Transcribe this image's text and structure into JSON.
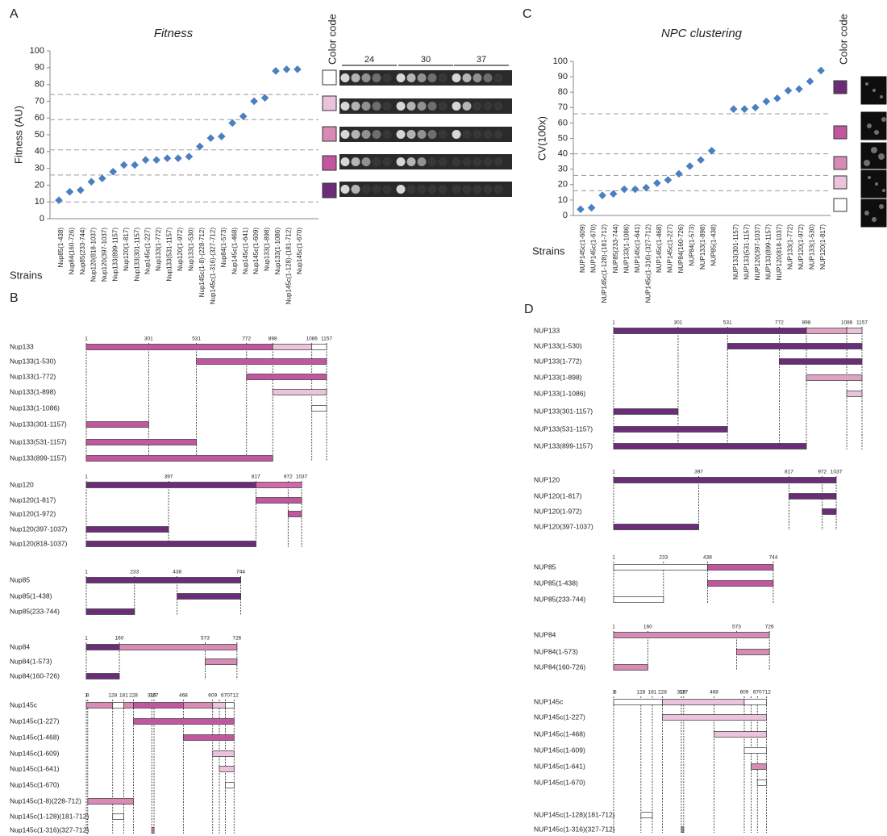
{
  "chart_data": [
    {
      "type": "scatter",
      "panel_label": "A",
      "title": "Fitness",
      "y_label": "Fitness (AU)",
      "x_label": "Strains",
      "categories": [
        "Nup85(1-438)",
        "Nup84(160-726)",
        "Nup85(233-744)",
        "Nup120(818-1037)",
        "Nup120(397-1037)",
        "Nup133(899-1157)",
        "Nup120(1-817)",
        "Nup133(301-1157)",
        "Nup145c(1-227)",
        "Nup133(1-772)",
        "Nup133(531-1157)",
        "Nup120(1-972)",
        "Nup133(1-530)",
        "Nup145c(1-8)-(228-712)",
        "Nup145c(1-316)-(327-712)",
        "Nup84(1-573)",
        "Nup145c(1-468)",
        "Nup145c(1-641)",
        "Nup145c(1-609)",
        "Nup133(1-898)",
        "Nup133(1-1086)",
        "Nup145c(1-128)-(181-712)",
        "Nup145c(1-670)"
      ],
      "values": [
        11,
        16,
        17,
        22,
        24,
        28,
        32,
        32,
        35,
        35,
        36,
        36,
        37,
        43,
        48,
        49,
        57,
        61,
        70,
        72,
        88,
        89,
        89
      ],
      "color": "#4a7fc1",
      "ylim": [
        0,
        100
      ],
      "yticks": [
        0,
        10,
        20,
        30,
        40,
        50,
        60,
        70,
        80,
        90,
        100
      ],
      "reference_lines": [
        74,
        59,
        41,
        26,
        10
      ],
      "color_code": {
        "title": "Color code",
        "colors": [
          "#ffffff",
          "#ebc3dc",
          "#d88bb5",
          "#c2569f",
          "#6b2d78"
        ]
      },
      "plate_headers": [
        "24",
        "30",
        "37"
      ]
    },
    {
      "type": "scatter",
      "panel_label": "C",
      "title": "NPC clustering",
      "y_label": "CV(100x)",
      "x_label": "Strains",
      "categories": [
        "NUP145c(1-609)",
        "NUP145c(1-670)",
        "NUP145c(1-128)-(181-712)",
        "NUP85(233-744)",
        "NUP133(1-1086)",
        "NUP145c(1-641)",
        "NUP145c(1-316)-(327-712)",
        "NUP145c(1-468)",
        "NUP145c(1-227)",
        "NUP84(160-726)",
        "NUP84(1-573)",
        "NUP133(1-898)",
        "NUP85(1-438)",
        null,
        "NUP133(301-1157)",
        "NUP133(531-1157)",
        "NUP120(397-1037)",
        "NUP133(899-1157)",
        "NUP120(818-1037)",
        "NUP133(1-772)",
        "NUP120(1-972)",
        "NUP133(1-530)",
        "NUP120(1-817)"
      ],
      "values": [
        4,
        5,
        13,
        14,
        17,
        17,
        18,
        21,
        23,
        27,
        32,
        36,
        42,
        null,
        69,
        69,
        70,
        74,
        76,
        81,
        82,
        87,
        94
      ],
      "color": "#4a7fc1",
      "ylim": [
        0,
        100
      ],
      "yticks": [
        0,
        10,
        20,
        30,
        40,
        50,
        60,
        70,
        80,
        90,
        100
      ],
      "reference_lines": [
        66,
        40,
        26,
        16
      ],
      "color_code": {
        "title": "Color code",
        "colors": [
          "#6b2d78",
          "#c2569f",
          "#d88bb5",
          "#ebc3dc",
          "#ffffff"
        ]
      }
    }
  ],
  "diagrams": [
    {
      "panel_label": "B",
      "groups": [
        {
          "ticks": [
            1,
            301,
            531,
            772,
            898,
            1086,
            1157
          ],
          "rows": [
            {
              "label": "Nup133",
              "bars": [
                [
                  1,
                  898,
                  "#c2569f"
                ],
                [
                  898,
                  1086,
                  "#ebc3dc"
                ],
                [
                  1086,
                  1157,
                  "#ffffff"
                ]
              ]
            },
            {
              "label": "Nup133(1-530)",
              "bars": [
                [
                  531,
                  1157,
                  "#c2569f"
                ]
              ]
            },
            {
              "label": "Nup133(1-772)",
              "bars": [
                [
                  772,
                  1157,
                  "#c2569f"
                ]
              ]
            },
            {
              "label": "Nup133(1-898)",
              "bars": [
                [
                  898,
                  1157,
                  "#ebc3dc"
                ]
              ]
            },
            {
              "label": "Nup133(1-1086)",
              "bars": [
                [
                  1086,
                  1157,
                  "#ffffff"
                ]
              ]
            },
            {
              "label": "Nup133(301-1157)",
              "bars": [
                [
                  1,
                  301,
                  "#c2569f"
                ]
              ]
            },
            {
              "label": "Nup133(531-1157)",
              "bars": [
                [
                  1,
                  531,
                  "#c2569f"
                ]
              ]
            },
            {
              "label": "Nup133(899-1157)",
              "bars": [
                [
                  1,
                  898,
                  "#c2569f"
                ]
              ]
            }
          ]
        },
        {
          "ticks": [
            1,
            397,
            817,
            972,
            1037
          ],
          "rows": [
            {
              "label": "Nup120",
              "bars": [
                [
                  1,
                  817,
                  "#6b2d78"
                ],
                [
                  817,
                  1037,
                  "#d06aab"
                ]
              ]
            },
            {
              "label": "Nup120(1-817)",
              "bars": [
                [
                  817,
                  1037,
                  "#c2569f"
                ]
              ]
            },
            {
              "label": "Nup120(1-972)",
              "bars": [
                [
                  972,
                  1037,
                  "#c2569f"
                ]
              ]
            },
            {
              "label": "Nup120(397-1037)",
              "bars": [
                [
                  1,
                  397,
                  "#6b2d78"
                ]
              ]
            },
            {
              "label": "Nup120(818-1037)",
              "bars": [
                [
                  1,
                  817,
                  "#6b2d78"
                ]
              ]
            }
          ]
        },
        {
          "ticks": [
            1,
            233,
            438,
            744
          ],
          "rows": [
            {
              "label": "Nup85",
              "bars": [
                [
                  1,
                  744,
                  "#6b2d78"
                ]
              ]
            },
            {
              "label": "Nup85(1-438)",
              "bars": [
                [
                  438,
                  744,
                  "#6b2d78"
                ]
              ]
            },
            {
              "label": "Nup85(233-744)",
              "bars": [
                [
                  1,
                  233,
                  "#6b2d78"
                ]
              ]
            }
          ]
        },
        {
          "ticks": [
            1,
            160,
            573,
            726
          ],
          "rows": [
            {
              "label": "Nup84",
              "bars": [
                [
                  1,
                  160,
                  "#6b2d78"
                ],
                [
                  160,
                  726,
                  "#d88bb5"
                ]
              ]
            },
            {
              "label": "Nup84(1-573)",
              "bars": [
                [
                  573,
                  726,
                  "#d88bb5"
                ]
              ]
            },
            {
              "label": "Nup84(160-726)",
              "bars": [
                [
                  1,
                  160,
                  "#6b2d78"
                ]
              ]
            }
          ]
        },
        {
          "ticks": [
            1,
            8,
            128,
            181,
            228,
            316,
            327,
            468,
            609,
            670,
            712
          ],
          "rows": [
            {
              "label": "Nup145c",
              "bars": [
                [
                  1,
                  128,
                  "#d88bb5"
                ],
                [
                  128,
                  181,
                  "#ffffff"
                ],
                [
                  181,
                  228,
                  "#d88bb5"
                ],
                [
                  228,
                  468,
                  "#c2569f"
                ],
                [
                  468,
                  609,
                  "#d88bb5"
                ],
                [
                  609,
                  670,
                  "#ebc3dc"
                ],
                [
                  670,
                  712,
                  "#ffffff"
                ]
              ]
            },
            {
              "label": "Nup145c(1-227)",
              "bars": [
                [
                  228,
                  712,
                  "#c2569f"
                ]
              ]
            },
            {
              "label": "Nup145c(1-468)",
              "bars": [
                [
                  468,
                  712,
                  "#c2569f"
                ]
              ]
            },
            {
              "label": "Nup145c(1-609)",
              "bars": [
                [
                  609,
                  712,
                  "#ebc3dc"
                ]
              ]
            },
            {
              "label": "Nup145c(1-641)",
              "bars": [
                [
                  641,
                  712,
                  "#ebc3dc"
                ]
              ]
            },
            {
              "label": "Nup145c(1-670)",
              "bars": [
                [
                  670,
                  712,
                  "#ffffff"
                ]
              ]
            },
            {
              "label": "Nup145c(1-8)(228-712)",
              "bars": [
                [
                  8,
                  228,
                  "#d88bb5"
                ]
              ]
            },
            {
              "label": "Nup145c(1-128)(181-712)",
              "bars": [
                [
                  128,
                  181,
                  "#ffffff"
                ]
              ]
            },
            {
              "label": "Nup145c(1-316)(327-712)",
              "bars": [
                [
                  316,
                  327,
                  "#d88bb5"
                ]
              ]
            }
          ]
        }
      ]
    },
    {
      "panel_label": "D",
      "groups": [
        {
          "ticks": [
            1,
            301,
            531,
            772,
            898,
            1086,
            1157
          ],
          "rows": [
            {
              "label": "NUP133",
              "bars": [
                [
                  1,
                  898,
                  "#6b2d78"
                ],
                [
                  898,
                  1086,
                  "#e0a3c6"
                ],
                [
                  1086,
                  1157,
                  "#ebc3dc"
                ]
              ]
            },
            {
              "label": "NUP133(1-530)",
              "bars": [
                [
                  531,
                  1157,
                  "#6b2d78"
                ]
              ]
            },
            {
              "label": "NUP133(1-772)",
              "bars": [
                [
                  772,
                  1157,
                  "#6b2d78"
                ]
              ]
            },
            {
              "label": "NUP133(1-898)",
              "bars": [
                [
                  898,
                  1157,
                  "#e0a3c6"
                ]
              ]
            },
            {
              "label": "NUP133(1-1086)",
              "bars": [
                [
                  1086,
                  1157,
                  "#ebc3dc"
                ]
              ]
            },
            {
              "label": "NUP133(301-1157)",
              "bars": [
                [
                  1,
                  301,
                  "#6b2d78"
                ]
              ]
            },
            {
              "label": "NUP133(531-1157)",
              "bars": [
                [
                  1,
                  531,
                  "#6b2d78"
                ]
              ]
            },
            {
              "label": "NUP133(899-1157)",
              "bars": [
                [
                  1,
                  898,
                  "#6b2d78"
                ]
              ]
            }
          ]
        },
        {
          "ticks": [
            1,
            397,
            817,
            972,
            1037
          ],
          "rows": [
            {
              "label": "NUP120",
              "bars": [
                [
                  1,
                  1037,
                  "#6b2d78"
                ]
              ]
            },
            {
              "label": "NUP120(1-817)",
              "bars": [
                [
                  817,
                  1037,
                  "#6b2d78"
                ]
              ]
            },
            {
              "label": "NUP120(1-972)",
              "bars": [
                [
                  972,
                  1037,
                  "#6b2d78"
                ]
              ]
            },
            {
              "label": "NUP120(397-1037)",
              "bars": [
                [
                  1,
                  397,
                  "#6b2d78"
                ]
              ]
            }
          ]
        },
        {
          "ticks": [
            1,
            233,
            438,
            744
          ],
          "rows": [
            {
              "label": "NUP85",
              "bars": [
                [
                  1,
                  438,
                  "#ffffff"
                ],
                [
                  438,
                  744,
                  "#c2569f"
                ]
              ]
            },
            {
              "label": "NUP85(1-438)",
              "bars": [
                [
                  438,
                  744,
                  "#c2569f"
                ]
              ]
            },
            {
              "label": "NUP85(233-744)",
              "bars": [
                [
                  1,
                  233,
                  "#ffffff"
                ]
              ]
            }
          ]
        },
        {
          "ticks": [
            1,
            160,
            573,
            726
          ],
          "rows": [
            {
              "label": "NUP84",
              "bars": [
                [
                  1,
                  726,
                  "#d88bb5"
                ]
              ]
            },
            {
              "label": "NUP84(1-573)",
              "bars": [
                [
                  573,
                  726,
                  "#d88bb5"
                ]
              ]
            },
            {
              "label": "NUP84(160-726)",
              "bars": [
                [
                  1,
                  160,
                  "#d88bb5"
                ]
              ]
            }
          ]
        },
        {
          "ticks": [
            1,
            8,
            128,
            181,
            228,
            316,
            327,
            468,
            609,
            670,
            712
          ],
          "rows": [
            {
              "label": "NUP145c",
              "bars": [
                [
                  1,
                  228,
                  "#ffffff"
                ],
                [
                  228,
                  609,
                  "#ebc3dc"
                ],
                [
                  609,
                  712,
                  "#ffffff"
                ]
              ]
            },
            {
              "label": "NUP145c(1-227)",
              "bars": [
                [
                  228,
                  712,
                  "#ebc3dc"
                ]
              ]
            },
            {
              "label": "NUP145c(1-468)",
              "bars": [
                [
                  468,
                  712,
                  "#ebc3dc"
                ]
              ]
            },
            {
              "label": "NUP145c(1-609)",
              "bars": [
                [
                  609,
                  712,
                  "#ffffff"
                ]
              ]
            },
            {
              "label": "NUP145c(1-641)",
              "bars": [
                [
                  641,
                  712,
                  "#d88bb5"
                ]
              ]
            },
            {
              "label": "NUP145c(1-670)",
              "bars": [
                [
                  670,
                  712,
                  "#ffffff"
                ]
              ]
            },
            {
              "label": "NUP145c(1-128)(181-712)",
              "bars": [
                [
                  128,
                  181,
                  "#ffffff"
                ]
              ]
            },
            {
              "label": "NUP145c(1-316)(327-712)",
              "bars": [
                [
                  316,
                  327,
                  "#999999"
                ]
              ]
            }
          ]
        }
      ]
    }
  ]
}
